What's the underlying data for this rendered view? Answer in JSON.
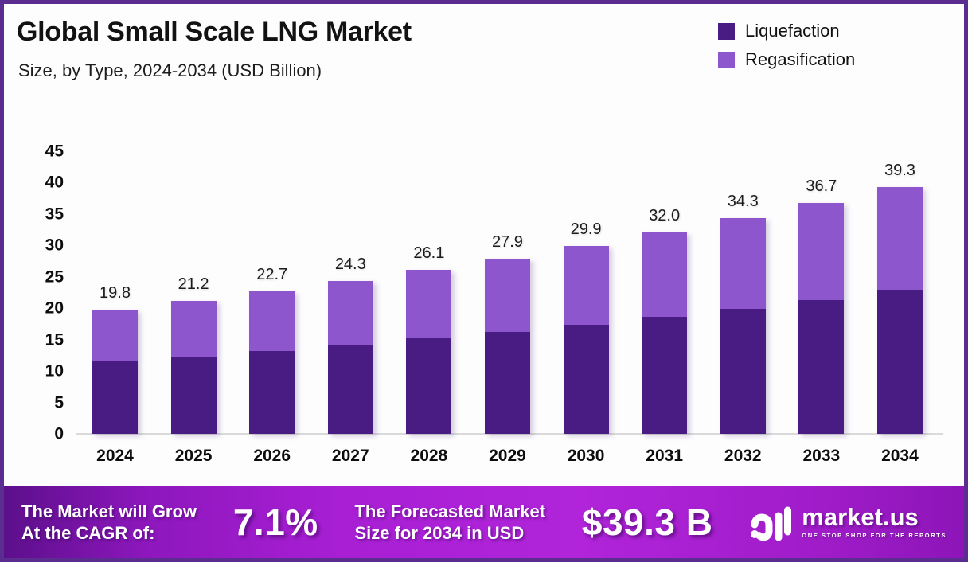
{
  "header": {
    "title": "Global Small Scale LNG Market",
    "subtitle": "Size, by Type, 2024-2034 (USD Billion)"
  },
  "legend": {
    "items": [
      {
        "label": "Liquefaction",
        "color": "#481c82"
      },
      {
        "label": "Regasification",
        "color": "#8e56cd"
      }
    ]
  },
  "chart_data": {
    "type": "bar",
    "stacked": true,
    "title": "Global Small Scale LNG Market",
    "subtitle": "Size, by Type, 2024-2034 (USD Billion)",
    "unit": "USD Billion",
    "categories": [
      "2024",
      "2025",
      "2026",
      "2027",
      "2028",
      "2029",
      "2030",
      "2031",
      "2032",
      "2033",
      "2034"
    ],
    "series": [
      {
        "name": "Liquefaction",
        "color": "#481c82",
        "values": [
          11.5,
          12.3,
          13.2,
          14.1,
          15.2,
          16.2,
          17.4,
          18.6,
          19.9,
          21.3,
          22.9
        ]
      },
      {
        "name": "Regasification",
        "color": "#8e56cd",
        "values": [
          8.3,
          8.9,
          9.5,
          10.2,
          10.9,
          11.7,
          12.5,
          13.4,
          14.4,
          15.4,
          16.4
        ]
      }
    ],
    "totals": [
      19.8,
      21.2,
      22.7,
      24.3,
      26.1,
      27.9,
      29.9,
      32.0,
      34.3,
      36.7,
      39.3
    ],
    "total_labels": [
      "19.8",
      "21.2",
      "22.7",
      "24.3",
      "26.1",
      "27.9",
      "29.9",
      "32.0",
      "34.3",
      "36.7",
      "39.3"
    ],
    "xlabel": "",
    "ylabel": "",
    "ylim": [
      0,
      45
    ],
    "ytick_step": 5,
    "grid": false,
    "legend_position": "top-right"
  },
  "footer": {
    "cagr_label_line1": "The Market will Grow",
    "cagr_label_line2": "At the CAGR of:",
    "cagr_value": "7.1%",
    "forecast_label_line1": "The Forecasted Market",
    "forecast_label_line2": "Size for 2034 in USD",
    "forecast_value": "$39.3 B",
    "logo": {
      "name": "market.us",
      "tagline": "ONE STOP SHOP FOR THE REPORTS"
    }
  },
  "colors": {
    "liquefaction": "#481c82",
    "regasification": "#8e56cd",
    "frame_border": "#5b2d90",
    "axis_line": "#dadada",
    "footer_gradient_start": "#5c0f8b",
    "footer_gradient_mid": "#b124da",
    "footer_gradient_end": "#8d15b8"
  }
}
